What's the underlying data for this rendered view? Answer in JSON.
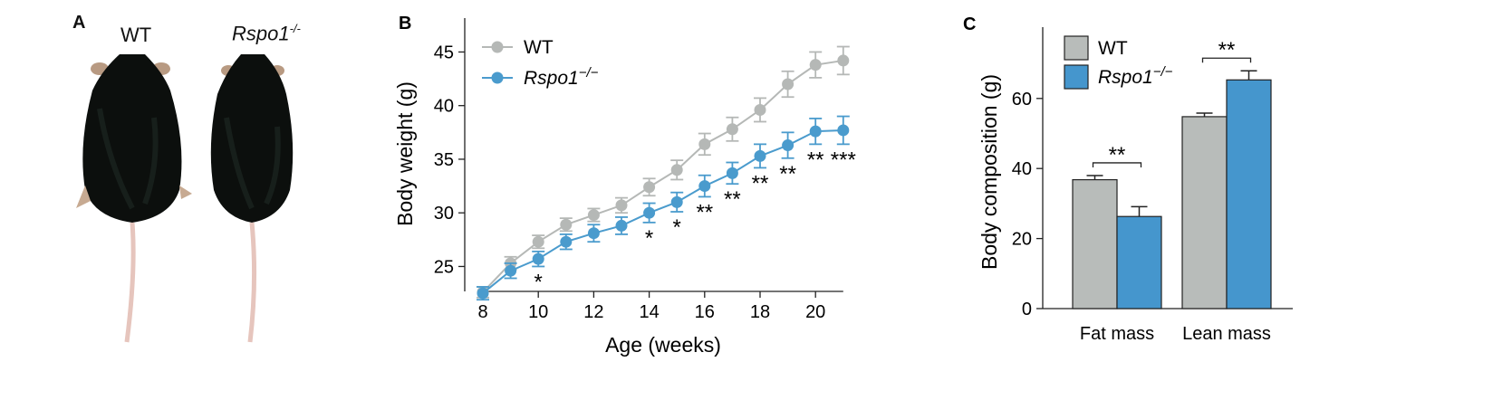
{
  "panels": {
    "A": "A",
    "B": "B",
    "C": "C"
  },
  "photo": {
    "wt_label": "WT",
    "ko_label_base": "Rspo1",
    "ko_label_sup": "-/-"
  },
  "colors": {
    "wt": "#b5b8b6",
    "ko": "#4a9bcd",
    "bar_wt": "#b8bcba",
    "bar_ko": "#4596cd"
  },
  "chart_data": [
    {
      "type": "line",
      "panel": "B",
      "xlabel": "Age (weeks)",
      "ylabel": "Body weight (g)",
      "xlim": [
        8,
        21
      ],
      "ylim": [
        22,
        46
      ],
      "xticks": [
        "8",
        "10",
        "12",
        "14",
        "16",
        "18",
        "20"
      ],
      "yticks": [
        "25",
        "30",
        "35",
        "40",
        "45"
      ],
      "legend_position": "top-left",
      "x": [
        8,
        9,
        10,
        11,
        12,
        13,
        14,
        15,
        16,
        17,
        18,
        19,
        20,
        21
      ],
      "series": [
        {
          "name": "WT",
          "values": [
            22.6,
            25.3,
            27.3,
            28.9,
            29.8,
            30.7,
            32.4,
            34.0,
            36.4,
            37.8,
            39.6,
            42.0,
            43.8,
            44.2
          ],
          "errors": [
            0.5,
            0.6,
            0.6,
            0.6,
            0.6,
            0.7,
            0.8,
            0.9,
            1.0,
            1.1,
            1.1,
            1.2,
            1.2,
            1.3
          ]
        },
        {
          "name": "Rspo1",
          "name_sup": "−/−",
          "values": [
            22.5,
            24.6,
            25.7,
            27.3,
            28.1,
            28.8,
            30.0,
            31.0,
            32.5,
            33.7,
            35.3,
            36.3,
            37.6,
            37.7
          ],
          "errors": [
            0.6,
            0.7,
            0.7,
            0.7,
            0.8,
            0.8,
            0.9,
            0.9,
            1.0,
            1.0,
            1.1,
            1.2,
            1.2,
            1.3
          ]
        }
      ],
      "annotations": [
        {
          "x": 10,
          "text": "*"
        },
        {
          "x": 14,
          "text": "*"
        },
        {
          "x": 15,
          "text": "*"
        },
        {
          "x": 16,
          "text": "**"
        },
        {
          "x": 17,
          "text": "**"
        },
        {
          "x": 18,
          "text": "**"
        },
        {
          "x": 19,
          "text": "**"
        },
        {
          "x": 20,
          "text": "**"
        },
        {
          "x": 21,
          "text": "***"
        }
      ]
    },
    {
      "type": "bar",
      "panel": "C",
      "ylabel": "Body composition (g)",
      "xlabel": "",
      "ylim": [
        0,
        80
      ],
      "yticks": [
        "0",
        "20",
        "40",
        "60"
      ],
      "categories": [
        "Fat mass",
        "Lean mass"
      ],
      "legend_position": "top-left",
      "series": [
        {
          "name": "WT",
          "values": [
            36.8,
            54.8
          ],
          "errors": [
            1.2,
            1.0
          ]
        },
        {
          "name": "Rspo1",
          "name_sup": "−/−",
          "values": [
            26.3,
            65.3
          ],
          "errors": [
            2.8,
            2.6
          ]
        }
      ],
      "annotations": [
        {
          "category": "Fat mass",
          "text": "**"
        },
        {
          "category": "Lean mass",
          "text": "**"
        }
      ]
    }
  ]
}
